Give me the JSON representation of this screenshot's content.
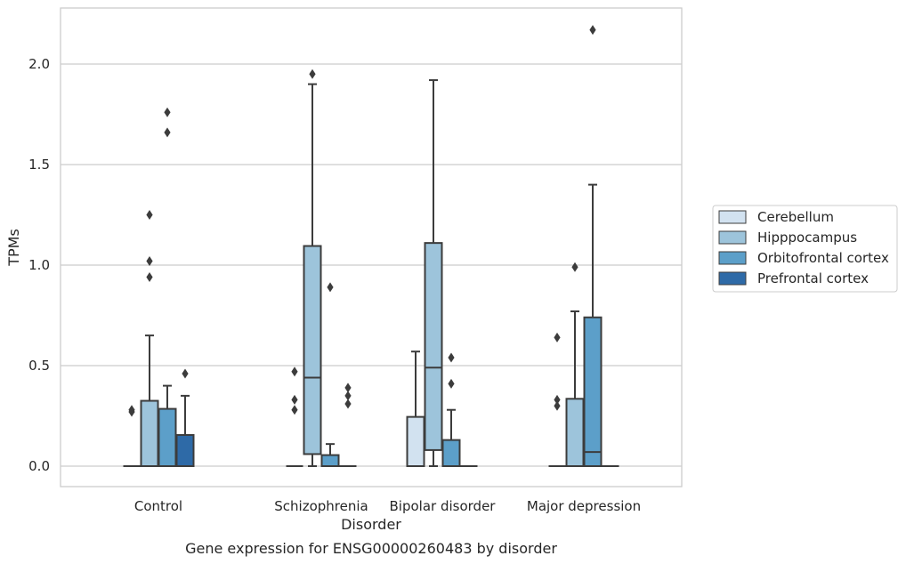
{
  "chart_data": {
    "type": "box",
    "xlabel": "Disorder",
    "ylabel": "TPMs",
    "caption": "Gene expression for ENSG00000260483 by disorder",
    "ylim": [
      -0.1,
      2.28
    ],
    "yticks": [
      "0.0",
      "0.5",
      "1.0",
      "1.5",
      "2.0"
    ],
    "grid": "horizontal",
    "legend_placement": "right",
    "categories": [
      "Control",
      "Schizophrenia",
      "Bipolar disorder",
      "Major depression"
    ],
    "series": [
      {
        "name": "Cerebellum",
        "color": "#d2e2f0",
        "boxes": [
          {
            "q1": 0,
            "median": 0,
            "q3": 0,
            "whislo": 0,
            "whishi": 0,
            "fliers": [
              0.28,
              0.27
            ]
          },
          {
            "q1": 0,
            "median": 0,
            "q3": 0,
            "whislo": 0,
            "whishi": 0,
            "fliers": [
              0.47,
              0.33,
              0.28
            ]
          },
          {
            "q1": 0,
            "median": 0,
            "q3": 0.245,
            "whislo": 0,
            "whishi": 0.57,
            "fliers": []
          },
          {
            "q1": 0,
            "median": 0,
            "q3": 0,
            "whislo": 0,
            "whishi": 0,
            "fliers": [
              0.64,
              0.33,
              0.3
            ]
          }
        ]
      },
      {
        "name": "Hipppocampus",
        "color": "#9dc4db",
        "boxes": [
          {
            "q1": 0,
            "median": 0,
            "q3": 0.325,
            "whislo": 0,
            "whishi": 0.65,
            "fliers": [
              1.25,
              1.02,
              0.94
            ]
          },
          {
            "q1": 0.06,
            "median": 0.44,
            "q3": 1.095,
            "whislo": 0,
            "whishi": 1.9,
            "fliers": [
              1.95
            ]
          },
          {
            "q1": 0.08,
            "median": 0.49,
            "q3": 1.11,
            "whislo": 0,
            "whishi": 1.92,
            "fliers": []
          },
          {
            "q1": 0,
            "median": 0,
            "q3": 0.335,
            "whislo": 0,
            "whishi": 0.77,
            "fliers": [
              0.99
            ]
          }
        ]
      },
      {
        "name": "Orbitofrontal cortex",
        "color": "#5c9fc9",
        "boxes": [
          {
            "q1": 0,
            "median": 0,
            "q3": 0.285,
            "whislo": 0,
            "whishi": 0.4,
            "fliers": [
              1.76,
              1.66
            ]
          },
          {
            "q1": 0,
            "median": 0,
            "q3": 0.055,
            "whislo": 0,
            "whishi": 0.11,
            "fliers": [
              0.89
            ]
          },
          {
            "q1": 0,
            "median": 0,
            "q3": 0.13,
            "whislo": 0,
            "whishi": 0.28,
            "fliers": [
              0.54,
              0.41
            ]
          },
          {
            "q1": 0,
            "median": 0.07,
            "q3": 0.74,
            "whislo": 0,
            "whishi": 1.4,
            "fliers": [
              2.17
            ]
          }
        ]
      },
      {
        "name": "Prefrontal cortex",
        "color": "#2e6aa7",
        "boxes": [
          {
            "q1": 0,
            "median": 0,
            "q3": 0.155,
            "whislo": 0,
            "whishi": 0.35,
            "fliers": [
              0.46
            ]
          },
          {
            "q1": 0,
            "median": 0,
            "q3": 0,
            "whislo": 0,
            "whishi": 0,
            "fliers": [
              0.39,
              0.35,
              0.31
            ]
          },
          {
            "q1": 0,
            "median": 0,
            "q3": 0,
            "whislo": 0,
            "whishi": 0,
            "fliers": []
          },
          {
            "q1": 0,
            "median": 0,
            "q3": 0,
            "whislo": 0,
            "whishi": 0,
            "fliers": []
          }
        ]
      }
    ]
  }
}
